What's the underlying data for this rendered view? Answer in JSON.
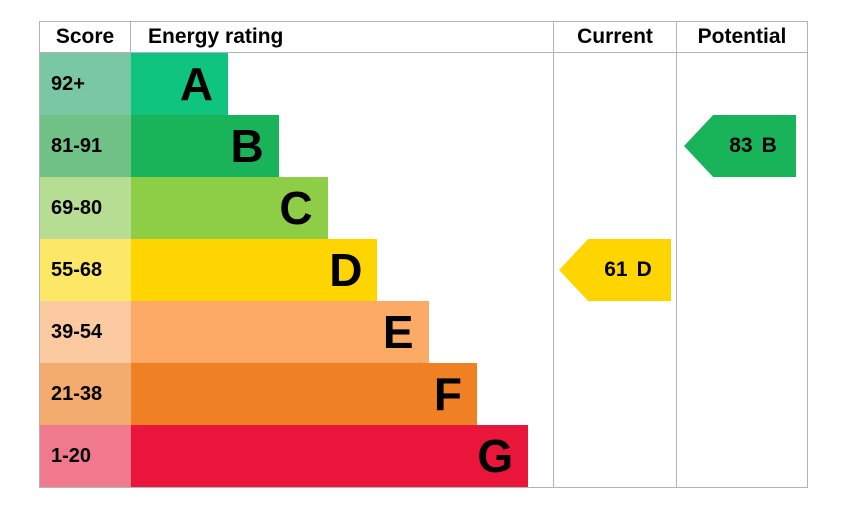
{
  "header": {
    "score": "Score",
    "energy_rating": "Energy rating",
    "current": "Current",
    "potential": "Potential"
  },
  "chart_data": {
    "type": "bar",
    "description": "EPC energy efficiency rating chart",
    "categories": [
      "A",
      "B",
      "C",
      "D",
      "E",
      "F",
      "G"
    ],
    "bands": [
      {
        "letter": "A",
        "score_range": "92+",
        "color": "#0fc47e",
        "tint": "#79c8a3",
        "width_frac": 0.23
      },
      {
        "letter": "B",
        "score_range": "81-91",
        "color": "#19b459",
        "tint": "#70c287",
        "width_frac": 0.35
      },
      {
        "letter": "C",
        "score_range": "69-80",
        "color": "#8dce46",
        "tint": "#b6dd92",
        "width_frac": 0.466
      },
      {
        "letter": "D",
        "score_range": "55-68",
        "color": "#ffd500",
        "tint": "#fde767",
        "width_frac": 0.584
      },
      {
        "letter": "E",
        "score_range": "39-54",
        "color": "#fcaa65",
        "tint": "#fccaa0",
        "width_frac": 0.705
      },
      {
        "letter": "F",
        "score_range": "21-38",
        "color": "#ef8023",
        "tint": "#f3ac6d",
        "width_frac": 0.82
      },
      {
        "letter": "G",
        "score_range": "1-20",
        "color": "#e9153b",
        "tint": "#f1798d",
        "width_frac": 0.941
      }
    ],
    "current": {
      "score": "61",
      "band": "D",
      "band_index": 3,
      "color": "#ffd500"
    },
    "potential": {
      "score": "83",
      "band": "B",
      "band_index": 1,
      "color": "#19b459"
    }
  },
  "colors": {
    "border": "#b1b4b6",
    "text": "#000000",
    "background": "#ffffff"
  }
}
